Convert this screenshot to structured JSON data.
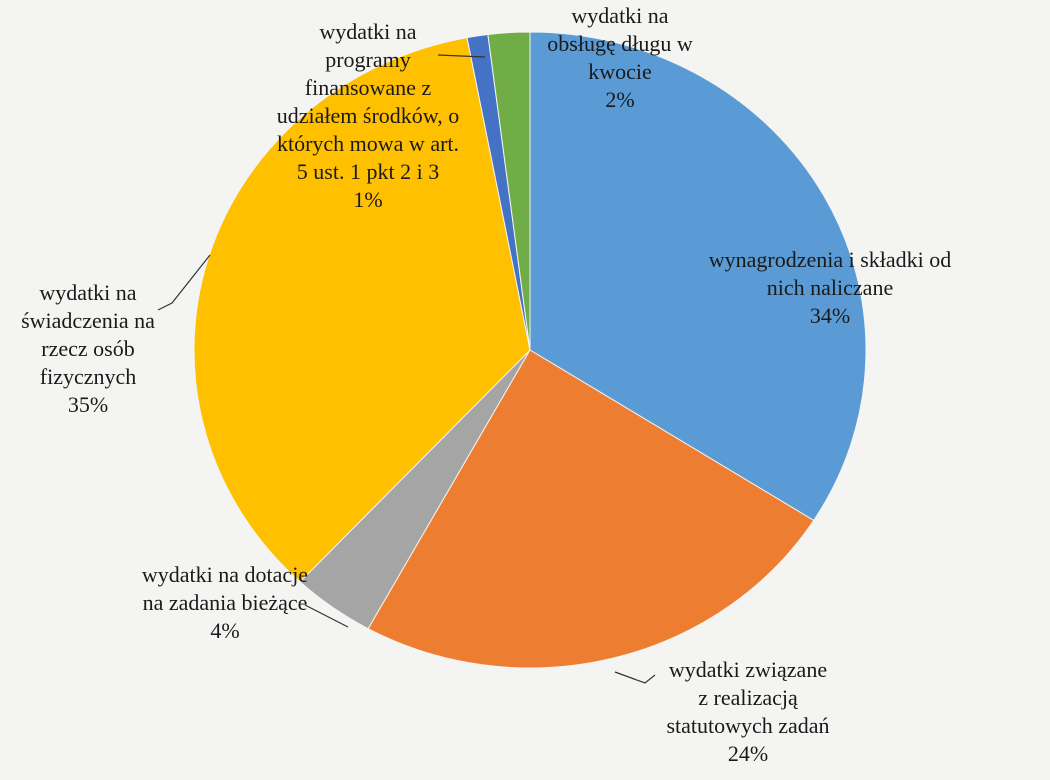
{
  "chart_data": {
    "type": "pie",
    "start_angle_deg": 0,
    "direction": "clockwise",
    "legend": "none",
    "slices": [
      {
        "key": "wynagrodzenia",
        "value": 34,
        "color": "#5b9bd5",
        "marker": false,
        "label_lines": [
          "wynagrodzenia i składki od",
          "nich naliczane"
        ],
        "pct_label": "34%"
      },
      {
        "key": "statutowe",
        "value": 24,
        "color": "#ed7d31",
        "marker": true,
        "label_lines": [
          "wydatki związane",
          "z realizacją",
          "statutowych zadań"
        ],
        "pct_label": "24%"
      },
      {
        "key": "dotacje",
        "value": 4,
        "color": "#a5a5a5",
        "marker": true,
        "label_lines": [
          "wydatki na dotacje",
          "na zadania bieżące"
        ],
        "pct_label": "4%"
      },
      {
        "key": "swiadczenia",
        "value": 35,
        "color": "#ffc000",
        "marker": true,
        "label_lines": [
          "wydatki na",
          "świadczenia na",
          "rzecz osób",
          "fizycznych"
        ],
        "pct_label": "35%"
      },
      {
        "key": "programy",
        "value": 1,
        "color": "#4472c4",
        "marker": true,
        "label_lines": [
          "wydatki na",
          "programy",
          "finansowane z",
          "udziałem środków, o",
          "których mowa w art.",
          "5 ust. 1 pkt 2 i 3"
        ],
        "pct_label": "1%"
      },
      {
        "key": "dlug",
        "value": 2,
        "color": "#70ad47",
        "marker": true,
        "label_lines": [
          "wydatki na",
          "obsługę długu w",
          "kwocie"
        ],
        "pct_label": "2%"
      }
    ]
  }
}
